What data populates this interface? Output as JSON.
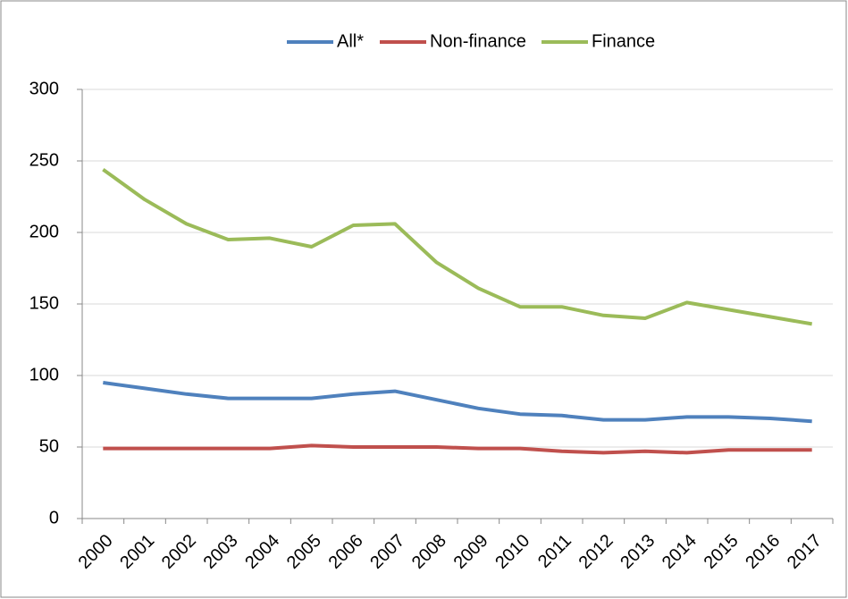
{
  "chart_data": {
    "type": "line",
    "categories": [
      "2000",
      "2001",
      "2002",
      "2003",
      "2004",
      "2005",
      "2006",
      "2007",
      "2008",
      "2009",
      "2010",
      "2011",
      "2012",
      "2013",
      "2014",
      "2015",
      "2016",
      "2017"
    ],
    "series": [
      {
        "name": "All*",
        "color": "#4f81bd",
        "values": [
          95,
          91,
          87,
          84,
          84,
          84,
          87,
          89,
          83,
          77,
          73,
          72,
          69,
          69,
          71,
          71,
          70,
          68
        ]
      },
      {
        "name": "Non-finance",
        "color": "#c0504d",
        "values": [
          49,
          49,
          49,
          49,
          49,
          51,
          50,
          50,
          50,
          49,
          49,
          47,
          46,
          47,
          46,
          48,
          48,
          48
        ]
      },
      {
        "name": "Finance",
        "color": "#9bbb59",
        "values": [
          244,
          223,
          206,
          195,
          196,
          190,
          205,
          206,
          179,
          161,
          148,
          148,
          142,
          140,
          151,
          146,
          141,
          136
        ]
      }
    ],
    "ylim": [
      0,
      300
    ],
    "yticks": [
      0,
      50,
      100,
      150,
      200,
      250,
      300
    ],
    "grid": true,
    "legend": "top"
  }
}
